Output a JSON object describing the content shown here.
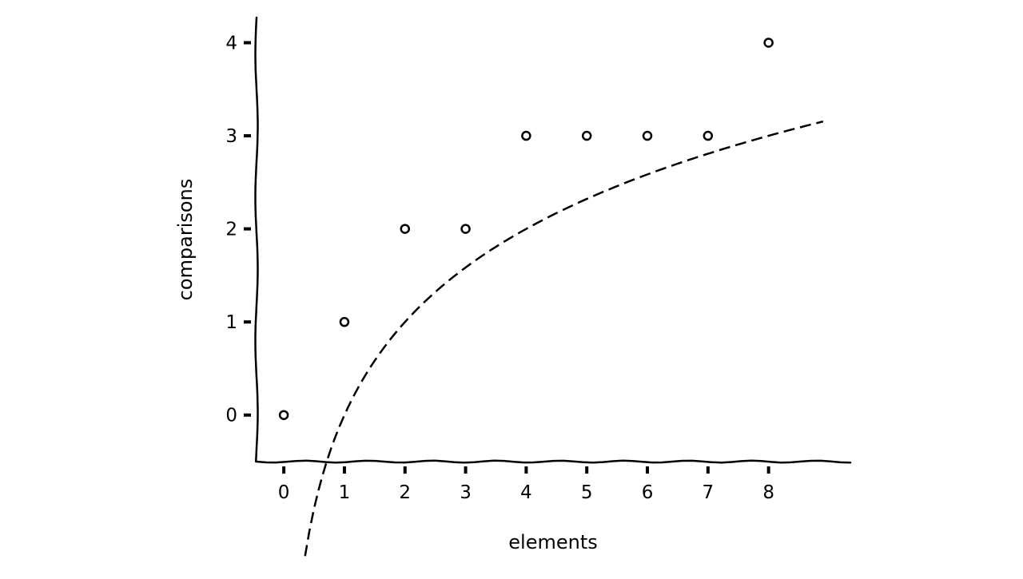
{
  "chart_data": {
    "type": "scatter",
    "style": "hand-drawn (xkcd)",
    "xlabel": "elements",
    "ylabel": "comparisons",
    "x_ticks": [
      0,
      1,
      2,
      3,
      4,
      5,
      6,
      7,
      8
    ],
    "y_ticks": [
      0,
      1,
      2,
      3,
      4
    ],
    "xlim": [
      -0.45,
      9.35
    ],
    "ylim": [
      -0.5,
      4.27
    ],
    "grid": false,
    "series": [
      {
        "kind": "points",
        "marker": "hollow circle",
        "x": [
          0,
          1,
          2,
          3,
          4,
          5,
          6,
          7,
          8
        ],
        "y": [
          0,
          1,
          2,
          2,
          3,
          3,
          3,
          3,
          4
        ]
      },
      {
        "kind": "curve",
        "line_style": "dashed",
        "function": "log2(x)",
        "x_range": [
          0.35,
          8.9
        ]
      }
    ],
    "colors": {
      "ink": "#000000",
      "background": "#ffffff"
    }
  }
}
